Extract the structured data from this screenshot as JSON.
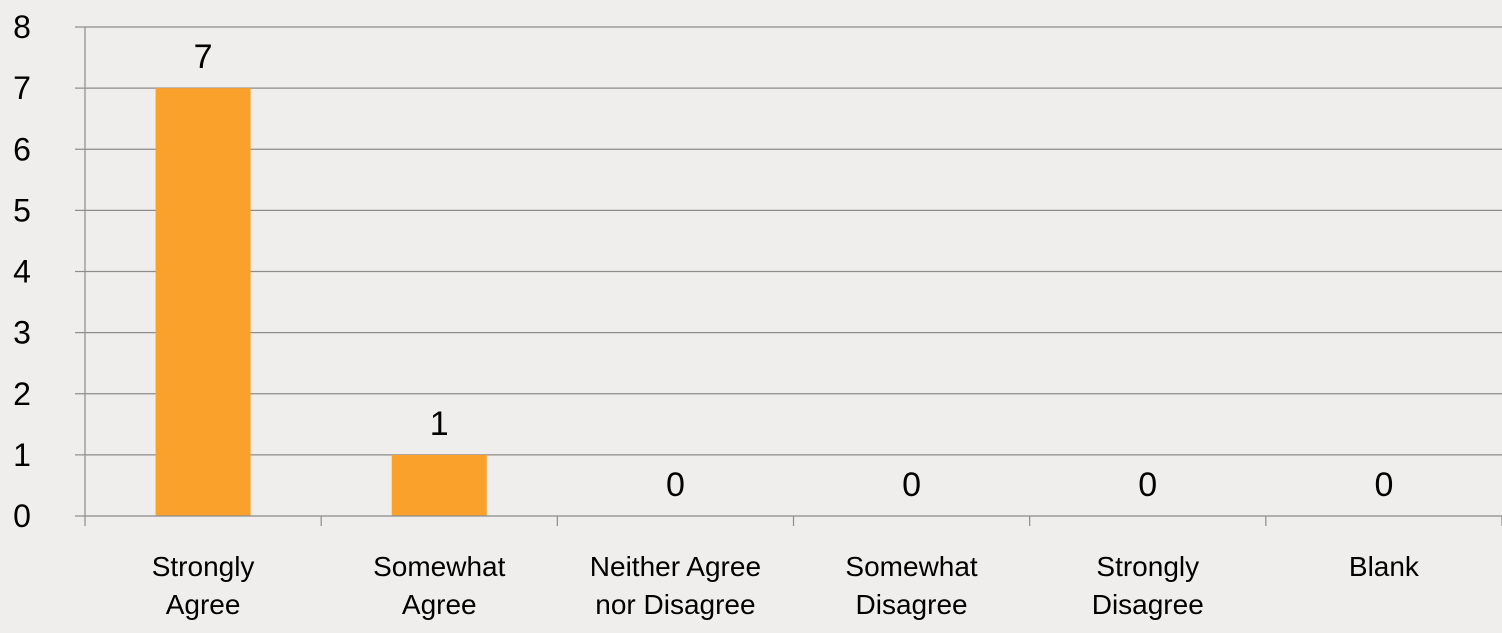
{
  "chart_data": {
    "type": "bar",
    "categories": [
      [
        "Strongly",
        "Agree"
      ],
      [
        "Somewhat",
        "Agree"
      ],
      [
        "Neither Agree",
        "nor Disagree"
      ],
      [
        "Somewhat",
        "Disagree"
      ],
      [
        "Strongly",
        "Disagree"
      ],
      [
        "Blank"
      ]
    ],
    "values": [
      7,
      1,
      0,
      0,
      0,
      0
    ],
    "data_labels": [
      "7",
      "1",
      "0",
      "0",
      "0",
      "0"
    ],
    "yticks": [
      "0",
      "1",
      "2",
      "3",
      "4",
      "5",
      "6",
      "7",
      "8"
    ],
    "ylim": [
      0,
      8
    ],
    "grid": true,
    "legend": "none",
    "colors": {
      "bar": "#f9a12b",
      "gridline": "#8c8c8c",
      "axis": "#8c8c8c",
      "text": "#000000",
      "background": "#efeeec"
    }
  }
}
